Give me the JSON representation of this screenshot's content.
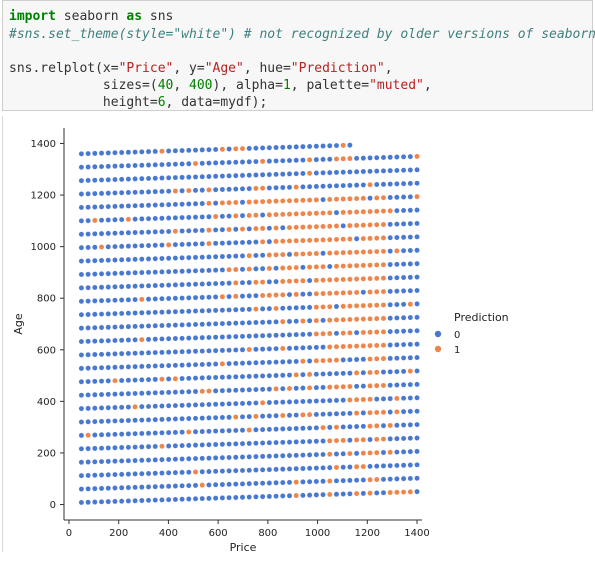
{
  "code": {
    "line1": {
      "kw1": "import",
      "mod": " seaborn ",
      "kw2": "as",
      "alias": " sns"
    },
    "line2": "#sns.set_theme(style=\"white\") # not recognized by older versions of seaborn",
    "line3": {
      "p1": "sns.relplot(x=",
      "s1": "\"Price\"",
      "p2": ", y=",
      "s2": "\"Age\"",
      "p3": ", hue=",
      "s3": "\"Prediction\"",
      "p4": ","
    },
    "line4": {
      "p1": "            sizes=(",
      "n1": "40",
      "p2": ", ",
      "n2": "400",
      "p3": "), alpha=",
      "n3": "1",
      "p4": ", palette=",
      "s1": "\"muted\"",
      "p5": ","
    },
    "line5": {
      "p1": "            height=",
      "n1": "6",
      "p2": ", data=mydf);"
    }
  },
  "chart_data": {
    "type": "scatter",
    "xlabel": "Price",
    "ylabel": "Age",
    "xlim": [
      -20,
      1420
    ],
    "ylim": [
      -60,
      1460
    ],
    "xticks": [
      "0",
      "200",
      "400",
      "600",
      "800",
      "1000",
      "1200",
      "1400"
    ],
    "yticks": [
      "0",
      "200",
      "400",
      "600",
      "800",
      "1000",
      "1200",
      "1400"
    ],
    "grid": false,
    "legend_title": "Prediction",
    "legend_placement": "right",
    "series": [
      {
        "name": "0",
        "color": "#4878d0"
      },
      {
        "name": "1",
        "color": "#ee854a"
      }
    ],
    "points": {
      "rows": 27,
      "cols": 51,
      "x_start": 50,
      "x_step": 27,
      "y_start_left": 8,
      "y_start_right": 50,
      "y_step": 52,
      "top_row_last_x": 1145,
      "class_1_rule": "majority orange where Price > ~(1300 - 0.55*Age) roughly; blue elsewhere, with scattered overlap"
    }
  }
}
